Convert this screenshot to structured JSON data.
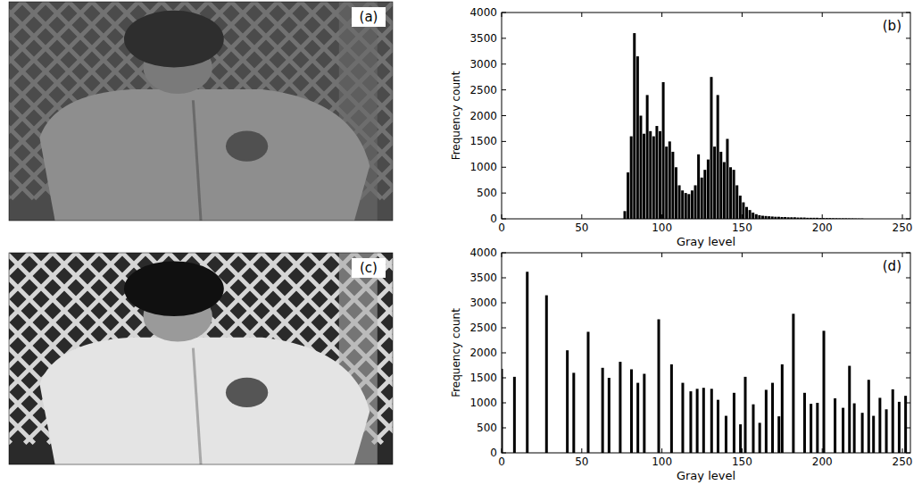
{
  "chart_data": [
    {
      "type": "histogram",
      "annotation": "(b)",
      "x_label": "Gray level",
      "y_label": "Frequency count",
      "color": "#000000",
      "grid": false,
      "bins": [
        76,
        78,
        80,
        82,
        84,
        86,
        88,
        90,
        92,
        94,
        96,
        98,
        100,
        102,
        104,
        106,
        108,
        110,
        112,
        114,
        116,
        118,
        120,
        122,
        124,
        126,
        128,
        130,
        132,
        134,
        136,
        138,
        140,
        142,
        144,
        146,
        148,
        150,
        152,
        154,
        156,
        158,
        160,
        162,
        164,
        166,
        168,
        170,
        172,
        174,
        176,
        178,
        180,
        182,
        184,
        186,
        188,
        190,
        192,
        194,
        196,
        198,
        200,
        202,
        204,
        206,
        208,
        210,
        212,
        214,
        216,
        218,
        220,
        222,
        224,
        226
      ],
      "values": [
        150,
        900,
        1600,
        3600,
        3150,
        2000,
        1650,
        2400,
        1700,
        1600,
        1800,
        1700,
        2650,
        1400,
        1500,
        1300,
        1000,
        650,
        550,
        500,
        480,
        550,
        650,
        1250,
        800,
        950,
        1150,
        2750,
        1400,
        2400,
        1300,
        1100,
        1550,
        1000,
        950,
        650,
        450,
        320,
        230,
        170,
        120,
        90,
        70,
        60,
        55,
        50,
        45,
        40,
        40,
        35,
        35,
        30,
        30,
        30,
        25,
        25,
        25,
        20,
        20,
        20,
        20,
        15,
        15,
        15,
        15,
        12,
        12,
        10,
        10,
        10,
        8,
        8,
        6,
        5,
        5
      ],
      "xlim": [
        0,
        255
      ],
      "xticks": [
        0,
        50,
        100,
        150,
        200,
        250
      ],
      "ylim": [
        0,
        4000
      ],
      "yticks": [
        0,
        500,
        1000,
        1500,
        2000,
        2500,
        3000,
        3500,
        4000
      ]
    },
    {
      "type": "bar",
      "annotation": "(d)",
      "x_label": "Gray level",
      "y_label": "Frequency count",
      "color": "#000000",
      "grid": false,
      "x": [
        0,
        8,
        16,
        28,
        41,
        45,
        54,
        63,
        67,
        74,
        81,
        85,
        89,
        98,
        106,
        113,
        118,
        122,
        126,
        131,
        135,
        140,
        145,
        149,
        152,
        157,
        161,
        165,
        169,
        173,
        175,
        182,
        189,
        193,
        197,
        201,
        208,
        213,
        217,
        220,
        225,
        229,
        232,
        236,
        240,
        244,
        248,
        252
      ],
      "values": [
        1680,
        1520,
        3620,
        3150,
        2050,
        1600,
        2420,
        1700,
        1500,
        1820,
        1670,
        1400,
        1580,
        2670,
        1770,
        1400,
        1230,
        1280,
        1300,
        1280,
        1060,
        740,
        1200,
        570,
        1520,
        970,
        600,
        1260,
        1400,
        730,
        1770,
        2780,
        1200,
        980,
        1000,
        2440,
        1090,
        900,
        1740,
        990,
        800,
        1460,
        740,
        1100,
        870,
        1270,
        1020,
        1140
      ],
      "xlim": [
        0,
        255
      ],
      "xticks": [
        0,
        50,
        100,
        150,
        200,
        250
      ],
      "ylim": [
        0,
        4000
      ],
      "yticks": [
        0,
        500,
        1000,
        1500,
        2000,
        2500,
        3000,
        3500,
        4000
      ]
    }
  ],
  "images": [
    {
      "label": "(a)"
    },
    {
      "label": "(c)"
    }
  ]
}
